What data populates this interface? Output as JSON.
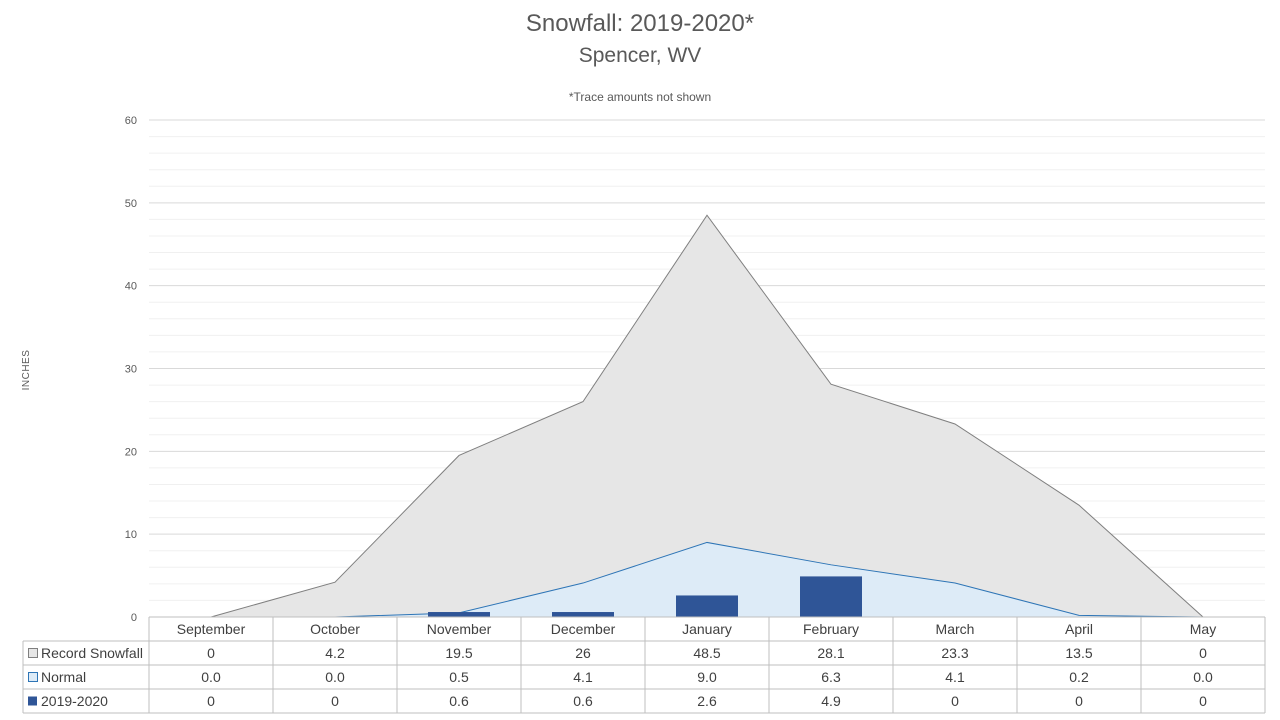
{
  "chart_data": {
    "type": "bar",
    "title": "Snowfall: 2019-2020*",
    "subtitle": "Spencer, WV",
    "note": "*Trace amounts not shown",
    "ylabel": "INCHES",
    "ylim": [
      0,
      60
    ],
    "yticks": [
      0,
      10,
      20,
      30,
      40,
      50,
      60
    ],
    "grid": true,
    "legend": "data-table",
    "categories": [
      "September",
      "October",
      "November",
      "December",
      "January",
      "February",
      "March",
      "April",
      "May"
    ],
    "series": [
      {
        "name": "Record Snowfall",
        "type": "area",
        "color": "#e6e6e6",
        "stroke": "#7f7f7f",
        "values": [
          0,
          4.2,
          19.5,
          26,
          48.5,
          28.1,
          23.3,
          13.5,
          0
        ],
        "labels": [
          "0",
          "4.2",
          "19.5",
          "26",
          "48.5",
          "28.1",
          "23.3",
          "13.5",
          "0"
        ]
      },
      {
        "name": "Normal",
        "type": "area",
        "color": "#ddebf7",
        "stroke": "#2e75b6",
        "values": [
          0.0,
          0.0,
          0.5,
          4.1,
          9.0,
          6.3,
          4.1,
          0.2,
          0.0
        ],
        "labels": [
          "0.0",
          "0.0",
          "0.5",
          "4.1",
          "9.0",
          "6.3",
          "4.1",
          "0.2",
          "0.0"
        ]
      },
      {
        "name": "2019-2020",
        "type": "bar",
        "color": "#2f5597",
        "values": [
          0,
          0,
          0.6,
          0.6,
          2.6,
          4.9,
          0,
          0,
          0
        ],
        "labels": [
          "0",
          "0",
          "0.6",
          "0.6",
          "2.6",
          "4.9",
          "0",
          "0",
          "0"
        ]
      }
    ]
  }
}
